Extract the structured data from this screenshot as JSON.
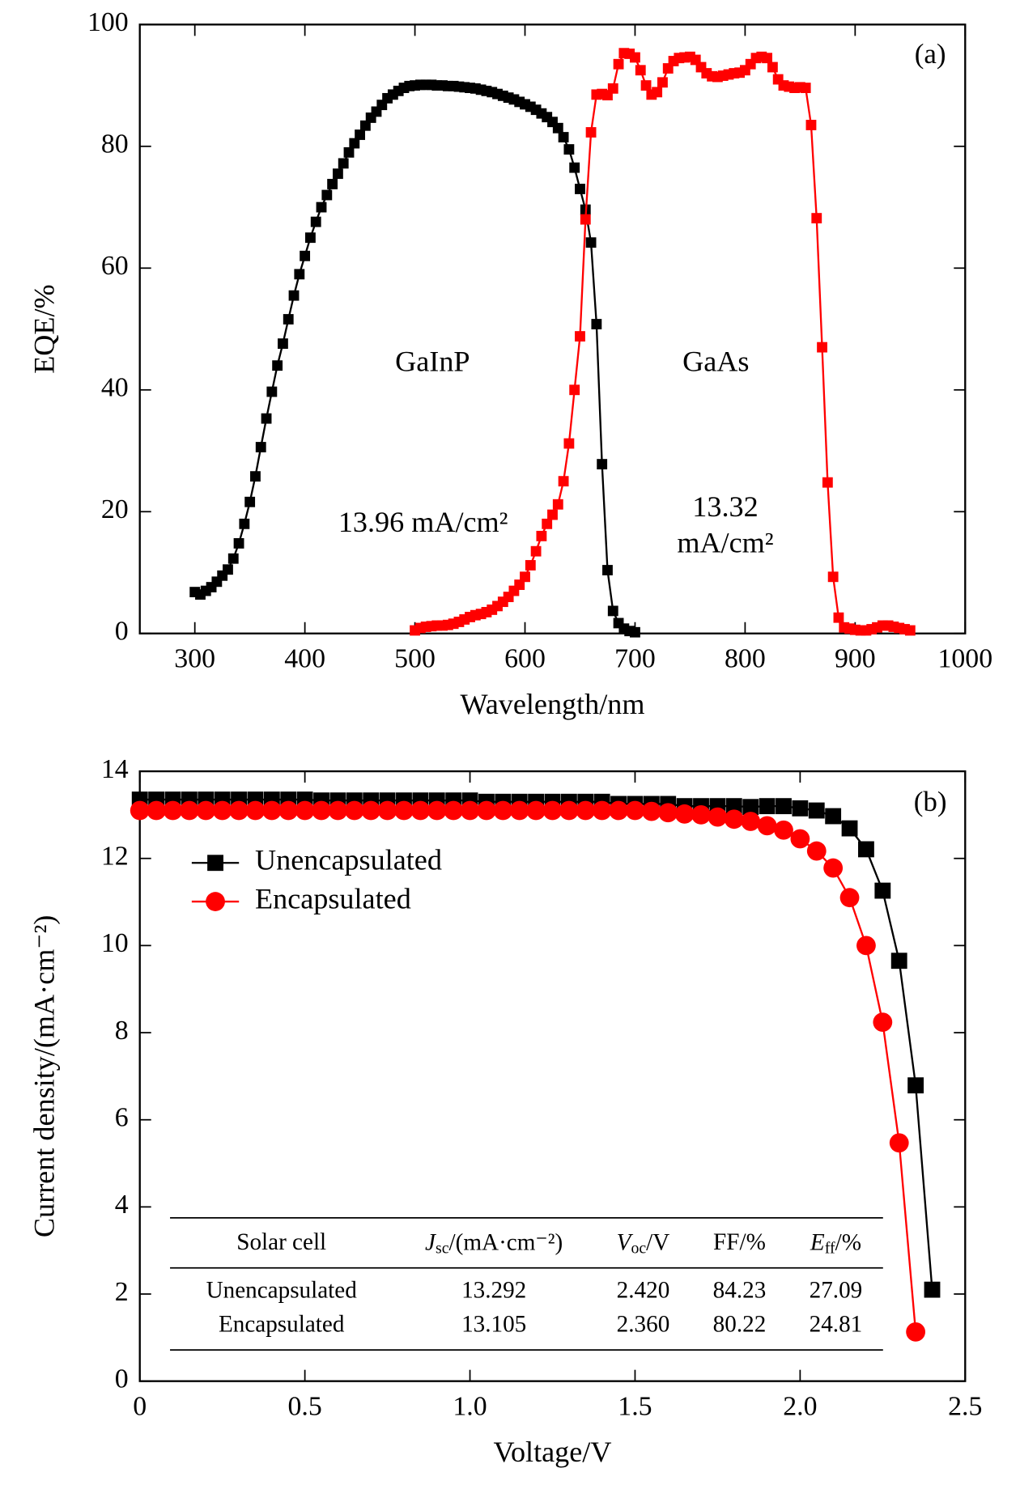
{
  "chart_data": [
    {
      "type": "line",
      "label": "(a)",
      "xlabel": "Wavelength/nm",
      "ylabel": "EQE/%",
      "xlim": [
        250,
        1000
      ],
      "ylim": [
        0,
        100
      ],
      "xticks": [
        300,
        400,
        500,
        600,
        700,
        800,
        900,
        1000
      ],
      "yticks": [
        0,
        20,
        40,
        60,
        80,
        100
      ],
      "annotations": [
        [
          "GaInP"
        ],
        [
          "GaAs"
        ],
        [
          "13.96 mA/cm²"
        ],
        [
          "13.32",
          "mA/cm²"
        ]
      ],
      "series": [
        {
          "color": "#000000",
          "marker": "square",
          "x": [
            300,
            305,
            310,
            315,
            320,
            325,
            330,
            335,
            340,
            345,
            350,
            355,
            360,
            365,
            370,
            375,
            380,
            385,
            390,
            395,
            400,
            405,
            410,
            415,
            420,
            425,
            430,
            435,
            440,
            445,
            450,
            455,
            460,
            465,
            470,
            475,
            480,
            485,
            490,
            495,
            500,
            505,
            510,
            515,
            520,
            525,
            530,
            535,
            540,
            545,
            550,
            555,
            560,
            565,
            570,
            575,
            580,
            585,
            590,
            595,
            600,
            605,
            610,
            615,
            620,
            625,
            630,
            635,
            640,
            645,
            650,
            655,
            660,
            665,
            670,
            675,
            680,
            685,
            690,
            695,
            700
          ],
          "values": [
            6.8,
            6.4,
            7.0,
            7.6,
            8.5,
            9.5,
            10.5,
            12.3,
            14.8,
            18.0,
            21.6,
            25.8,
            30.6,
            35.3,
            39.7,
            44.0,
            47.6,
            51.6,
            55.5,
            59.0,
            62.0,
            65.0,
            67.6,
            70.0,
            72.0,
            73.8,
            75.5,
            77.2,
            79.0,
            80.5,
            81.9,
            83.4,
            84.7,
            85.7,
            86.8,
            87.9,
            88.5,
            89.1,
            89.6,
            89.9,
            90.0,
            90.1,
            90.1,
            90.1,
            90.0,
            90.0,
            89.9,
            89.9,
            89.8,
            89.7,
            89.6,
            89.5,
            89.3,
            89.1,
            88.9,
            88.6,
            88.3,
            88.0,
            87.7,
            87.3,
            86.9,
            86.5,
            86.0,
            85.4,
            84.8,
            84.0,
            83.0,
            81.5,
            79.5,
            76.5,
            73.0,
            69.6,
            64.2,
            50.8,
            27.8,
            10.4,
            3.7,
            1.7,
            0.8,
            0.4,
            0.2
          ]
        },
        {
          "color": "#ff0000",
          "marker": "square",
          "x": [
            500,
            505,
            510,
            515,
            520,
            525,
            530,
            535,
            540,
            545,
            550,
            555,
            560,
            565,
            570,
            575,
            580,
            585,
            590,
            595,
            600,
            605,
            610,
            615,
            620,
            625,
            630,
            635,
            640,
            645,
            650,
            655,
            660,
            665,
            670,
            675,
            680,
            685,
            690,
            695,
            700,
            705,
            710,
            715,
            720,
            725,
            730,
            735,
            740,
            745,
            750,
            755,
            760,
            765,
            770,
            775,
            780,
            785,
            790,
            795,
            800,
            805,
            810,
            815,
            820,
            825,
            830,
            835,
            840,
            845,
            850,
            855,
            860,
            865,
            870,
            875,
            880,
            885,
            890,
            895,
            900,
            905,
            910,
            915,
            920,
            925,
            930,
            935,
            940,
            945,
            950
          ],
          "values": [
            0.5,
            0.9,
            1.1,
            1.2,
            1.3,
            1.3,
            1.4,
            1.6,
            1.9,
            2.3,
            2.7,
            3.0,
            3.2,
            3.5,
            3.9,
            4.5,
            5.2,
            6.0,
            7.0,
            8.0,
            9.3,
            11.2,
            13.5,
            16.0,
            18.0,
            19.5,
            21.2,
            25.0,
            31.2,
            40.0,
            48.8,
            68.0,
            82.3,
            88.5,
            88.6,
            88.4,
            89.5,
            93.5,
            95.3,
            95.2,
            94.6,
            92.5,
            90.0,
            88.5,
            88.9,
            90.5,
            92.8,
            94.0,
            94.5,
            94.6,
            94.7,
            94.2,
            93.0,
            92.0,
            91.5,
            91.4,
            91.6,
            91.8,
            92.0,
            92.1,
            92.5,
            93.5,
            94.5,
            94.7,
            94.5,
            93.0,
            91.0,
            90.0,
            89.8,
            89.6,
            89.7,
            89.6,
            83.5,
            68.2,
            47.0,
            24.8,
            9.3,
            2.6,
            1.0,
            0.8,
            0.6,
            0.5,
            0.5,
            0.7,
            1.0,
            1.3,
            1.3,
            1.1,
            0.9,
            0.7,
            0.5
          ]
        }
      ]
    },
    {
      "type": "line",
      "label": "(b)",
      "xlabel": "Voltage/V",
      "ylabel": "Current density/(mA·cm⁻²)",
      "xlim": [
        0,
        2.5
      ],
      "ylim": [
        0,
        14
      ],
      "xticks": [
        0,
        0.5,
        {
          "value": 1,
          "label": "1.0"
        },
        1.5,
        {
          "value": 2,
          "label": "2.0"
        },
        2.5
      ],
      "yticks": [
        0,
        2,
        4,
        6,
        8,
        10,
        12,
        14
      ],
      "legend": "upper left",
      "series": [
        {
          "name": "Unencapsulated",
          "color": "#000000",
          "marker": "square",
          "x": [
            0,
            0.05,
            0.1,
            0.15,
            0.2,
            0.25,
            0.3,
            0.35,
            0.4,
            0.45,
            0.5,
            0.55,
            0.6,
            0.65,
            0.7,
            0.75,
            0.8,
            0.85,
            0.9,
            0.95,
            1,
            1.05,
            1.1,
            1.15,
            1.2,
            1.25,
            1.3,
            1.35,
            1.4,
            1.45,
            1.5,
            1.55,
            1.6,
            1.65,
            1.7,
            1.75,
            1.8,
            1.85,
            1.9,
            1.95,
            2,
            2.05,
            2.1,
            2.15,
            2.2,
            2.25,
            2.3,
            2.35,
            2.4
          ],
          "values": [
            13.35,
            13.35,
            13.35,
            13.35,
            13.35,
            13.35,
            13.35,
            13.35,
            13.35,
            13.35,
            13.35,
            13.33,
            13.33,
            13.33,
            13.33,
            13.33,
            13.33,
            13.33,
            13.33,
            13.33,
            13.33,
            13.3,
            13.3,
            13.3,
            13.3,
            13.3,
            13.3,
            13.3,
            13.3,
            13.25,
            13.25,
            13.25,
            13.25,
            13.2,
            13.2,
            13.2,
            13.2,
            13.18,
            13.2,
            13.2,
            13.15,
            13.1,
            12.97,
            12.69,
            12.21,
            11.26,
            9.65,
            6.79,
            2.1
          ]
        },
        {
          "name": "Encapsulated",
          "color": "#ff0000",
          "marker": "circle",
          "x": [
            0,
            0.05,
            0.1,
            0.15,
            0.2,
            0.25,
            0.3,
            0.35,
            0.4,
            0.45,
            0.5,
            0.55,
            0.6,
            0.65,
            0.7,
            0.75,
            0.8,
            0.85,
            0.9,
            0.95,
            1,
            1.05,
            1.1,
            1.15,
            1.2,
            1.25,
            1.3,
            1.35,
            1.4,
            1.45,
            1.5,
            1.55,
            1.6,
            1.65,
            1.7,
            1.75,
            1.8,
            1.85,
            1.9,
            1.95,
            2,
            2.05,
            2.1,
            2.15,
            2.2,
            2.25,
            2.3,
            2.35
          ],
          "values": [
            13.1,
            13.1,
            13.1,
            13.1,
            13.1,
            13.1,
            13.1,
            13.1,
            13.1,
            13.1,
            13.1,
            13.1,
            13.1,
            13.1,
            13.1,
            13.1,
            13.1,
            13.1,
            13.1,
            13.1,
            13.1,
            13.1,
            13.1,
            13.1,
            13.1,
            13.1,
            13.1,
            13.1,
            13.1,
            13.1,
            13.1,
            13.08,
            13.05,
            13.02,
            13.0,
            12.95,
            12.9,
            12.85,
            12.75,
            12.65,
            12.45,
            12.17,
            11.78,
            11.1,
            10.0,
            8.24,
            5.47,
            1.13
          ]
        }
      ],
      "table": {
        "header": [
          "Solar cell",
          {
            "symbol": "J",
            "sub": "sc",
            "unit": "/(mA·cm⁻²)"
          },
          {
            "symbol": "V",
            "sub": "oc",
            "unit": "/V"
          },
          "FF/%",
          {
            "symbol": "E",
            "sub": "ff",
            "unit": "/%"
          }
        ],
        "rows": [
          [
            "Unencapsulated",
            "13.292",
            "2.420",
            "84.23",
            "27.09"
          ],
          [
            "Encapsulated",
            "13.105",
            "2.360",
            "80.22",
            "24.81"
          ]
        ]
      }
    }
  ]
}
